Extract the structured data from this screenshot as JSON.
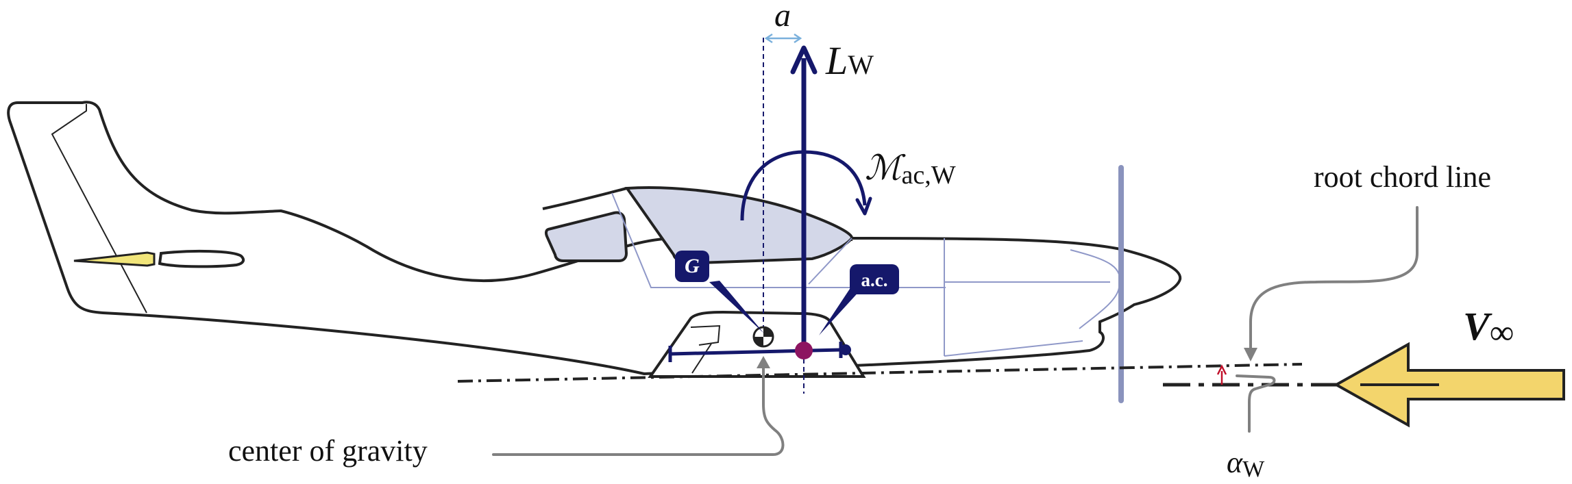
{
  "labels": {
    "a": "a",
    "lift_main": "L",
    "lift_sub": "W",
    "moment_main": "ℳ",
    "moment_sub": "ac,W",
    "root_chord": "root chord line",
    "cg": "center of gravity",
    "g_tag": "G",
    "ac_tag": "a.c.",
    "v_main": "V",
    "v_sub": "∞",
    "alpha_main": "α",
    "alpha_sub": "W"
  },
  "colors": {
    "outline": "#222222",
    "navy": "#15186b",
    "canopy": "#d3d7e8",
    "interior_lines": "#8f98c8",
    "propeller": "#8a93bd",
    "leader": "#808080",
    "ac_dot": "#8d1561",
    "alpha_arrow": "#c0102a",
    "dim_arrow": "#7ab0dc",
    "freestream_fill": "#f3d56c",
    "elevator_fill": "#f1e57a"
  }
}
